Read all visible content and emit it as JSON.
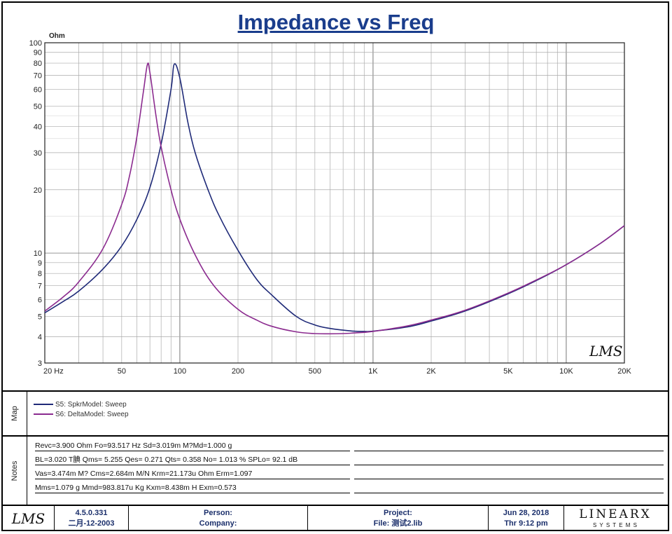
{
  "chart_data": {
    "type": "line",
    "title": "Impedance vs Freq",
    "ylabel": "Ohm",
    "xscale": "log",
    "yscale": "log",
    "xlim": [
      20,
      20000
    ],
    "ylim": [
      3,
      100
    ],
    "xticks": [
      {
        "value": 20,
        "label": "20  Hz"
      },
      {
        "value": 50,
        "label": "50"
      },
      {
        "value": 100,
        "label": "100"
      },
      {
        "value": 200,
        "label": "200"
      },
      {
        "value": 500,
        "label": "500"
      },
      {
        "value": 1000,
        "label": "1K"
      },
      {
        "value": 2000,
        "label": "2K"
      },
      {
        "value": 5000,
        "label": "5K"
      },
      {
        "value": 10000,
        "label": "10K"
      },
      {
        "value": 20000,
        "label": "20K"
      }
    ],
    "yticks": [
      {
        "value": 3,
        "label": "3"
      },
      {
        "value": 4,
        "label": "4"
      },
      {
        "value": 5,
        "label": "5"
      },
      {
        "value": 6,
        "label": "6"
      },
      {
        "value": 7,
        "label": "7"
      },
      {
        "value": 8,
        "label": "8"
      },
      {
        "value": 9,
        "label": "9"
      },
      {
        "value": 10,
        "label": "10"
      },
      {
        "value": 20,
        "label": "20"
      },
      {
        "value": 30,
        "label": "30"
      },
      {
        "value": 40,
        "label": "40"
      },
      {
        "value": 50,
        "label": "50"
      },
      {
        "value": 60,
        "label": "60"
      },
      {
        "value": 70,
        "label": "70"
      },
      {
        "value": 80,
        "label": "80"
      },
      {
        "value": 90,
        "label": "90"
      },
      {
        "value": 100,
        "label": "100"
      }
    ],
    "series": [
      {
        "name": "S5: SpkrModel: Sweep",
        "color": "#1f2a78",
        "x": [
          20,
          25,
          30,
          40,
          50,
          60,
          70,
          80,
          90,
          93.5,
          100,
          110,
          120,
          140,
          160,
          200,
          250,
          300,
          400,
          500,
          600,
          700,
          800,
          900,
          1000,
          1500,
          2000,
          3000,
          5000,
          7000,
          10000,
          15000,
          20000
        ],
        "y": [
          5.2,
          5.9,
          6.6,
          8.4,
          10.8,
          14.5,
          20.5,
          33,
          60,
          79,
          68,
          42,
          30,
          20,
          15,
          10.3,
          7.5,
          6.3,
          5.0,
          4.55,
          4.38,
          4.3,
          4.25,
          4.24,
          4.25,
          4.45,
          4.75,
          5.3,
          6.4,
          7.4,
          8.8,
          11.1,
          13.5
        ]
      },
      {
        "name": "S6: DeltaModel: Sweep",
        "color": "#8b2b8f",
        "x": [
          20,
          25,
          30,
          40,
          50,
          55,
          60,
          65,
          68,
          70,
          75,
          80,
          90,
          100,
          120,
          150,
          200,
          250,
          300,
          400,
          500,
          600,
          700,
          800,
          1000,
          1500,
          2000,
          3000,
          5000,
          7000,
          10000,
          15000,
          20000
        ],
        "y": [
          5.3,
          6.2,
          7.3,
          10.5,
          17,
          23.5,
          36,
          60,
          79,
          72,
          46,
          32,
          20,
          14.5,
          9.8,
          7.0,
          5.4,
          4.8,
          4.48,
          4.22,
          4.14,
          4.13,
          4.14,
          4.17,
          4.24,
          4.5,
          4.8,
          5.35,
          6.45,
          7.45,
          8.8,
          11.1,
          13.5
        ]
      }
    ]
  },
  "watermark": "LMS",
  "map": {
    "label": "Map",
    "items": [
      {
        "text": "S5: SpkrModel: Sweep",
        "color": "#1f2a78"
      },
      {
        "text": "S6: DeltaModel: Sweep",
        "color": "#8b2b8f"
      }
    ]
  },
  "notes": {
    "label": "Notes",
    "lines": [
      "Revc=3.900 Ohm  Fo=93.517 Hz  Sd=3.019m M?Md=1.000 g",
      "BL=3.020 T腆  Qms= 5.255  Qes= 0.271  Qts= 0.358  No= 1.013 %  SPLo= 92.1 dB",
      "Vas=3.474m M? Cms=2.684m M/N  Krm=21.173u Ohm  Erm=1.097",
      "Mms=1.079 g  Mmd=983.817u Kg  Kxm=8.438m H  Exm=0.573"
    ]
  },
  "footer": {
    "logo": "LMS",
    "version": "4.5.0.331",
    "version_date": "二月-12-2003",
    "person_label": "Person:",
    "company_label": "Company:",
    "project_label": "Project:",
    "file_label": "File: 测试2.lib",
    "date": "Jun 28, 2018",
    "time": "Thr  9:12 pm",
    "brand": "LINEARX",
    "brand_sub": "S Y S T E M S"
  }
}
